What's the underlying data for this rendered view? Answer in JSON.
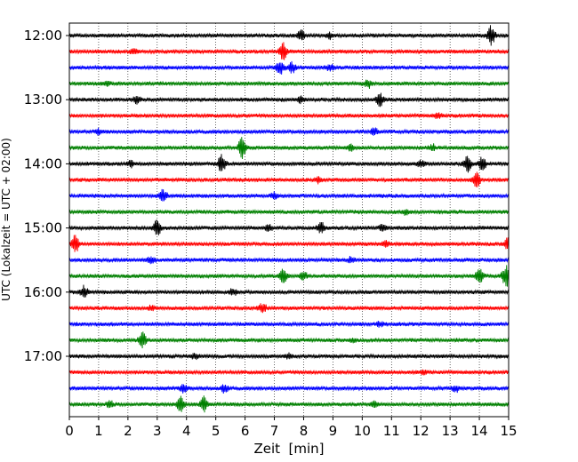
{
  "chart_data": {
    "type": "line",
    "title": "",
    "xlabel": "Zeit  [min]",
    "ylabel": "UTC (Lokalzeit = UTC + 02:00)",
    "xlim": [
      0,
      15
    ],
    "x_ticks": [
      "0",
      "1",
      "2",
      "3",
      "4",
      "5",
      "6",
      "7",
      "8",
      "9",
      "10",
      "11",
      "12",
      "13",
      "14",
      "15"
    ],
    "y_ticks": [
      "12:00",
      "13:00",
      "14:00",
      "15:00",
      "16:00",
      "17:00"
    ],
    "grid": "vertical dotted lines at each minute",
    "legend": "none",
    "trace_colors": [
      "#000000",
      "#ff0000",
      "#0000ff",
      "#008000"
    ],
    "traces": [
      {
        "start": "12:00",
        "color": "#000000",
        "events": [
          {
            "t": 7.9,
            "amp": 0.7
          },
          {
            "t": 14.4,
            "amp": 1.4
          },
          {
            "t": 8.9,
            "amp": 0.4
          }
        ]
      },
      {
        "start": "12:15",
        "color": "#ff0000",
        "events": [
          {
            "t": 7.3,
            "amp": 1.2
          },
          {
            "t": 2.2,
            "amp": 0.4
          }
        ]
      },
      {
        "start": "12:30",
        "color": "#0000ff",
        "events": [
          {
            "t": 7.2,
            "amp": 0.9
          },
          {
            "t": 7.6,
            "amp": 0.7
          },
          {
            "t": 8.9,
            "amp": 0.4
          }
        ]
      },
      {
        "start": "12:45",
        "color": "#008000",
        "events": [
          {
            "t": 10.2,
            "amp": 0.5
          },
          {
            "t": 1.3,
            "amp": 0.3
          }
        ]
      },
      {
        "start": "13:00",
        "color": "#000000",
        "events": [
          {
            "t": 10.6,
            "amp": 0.8
          },
          {
            "t": 2.3,
            "amp": 0.5
          },
          {
            "t": 7.9,
            "amp": 0.4
          }
        ]
      },
      {
        "start": "13:15",
        "color": "#ff0000",
        "events": [
          {
            "t": 12.6,
            "amp": 0.3
          }
        ]
      },
      {
        "start": "13:30",
        "color": "#0000ff",
        "events": [
          {
            "t": 10.4,
            "amp": 0.5
          },
          {
            "t": 1.0,
            "amp": 0.3
          }
        ]
      },
      {
        "start": "13:45",
        "color": "#008000",
        "events": [
          {
            "t": 5.9,
            "amp": 1.5
          },
          {
            "t": 9.6,
            "amp": 0.4
          },
          {
            "t": 12.4,
            "amp": 0.4
          }
        ]
      },
      {
        "start": "14:00",
        "color": "#000000",
        "events": [
          {
            "t": 5.2,
            "amp": 1.2
          },
          {
            "t": 13.6,
            "amp": 1.0
          },
          {
            "t": 14.1,
            "amp": 0.9
          },
          {
            "t": 12.0,
            "amp": 0.5
          },
          {
            "t": 2.1,
            "amp": 0.4
          }
        ]
      },
      {
        "start": "14:15",
        "color": "#ff0000",
        "events": [
          {
            "t": 13.9,
            "amp": 1.1
          },
          {
            "t": 8.5,
            "amp": 0.4
          }
        ]
      },
      {
        "start": "14:30",
        "color": "#0000ff",
        "events": [
          {
            "t": 3.2,
            "amp": 0.8
          },
          {
            "t": 7.0,
            "amp": 0.4
          }
        ]
      },
      {
        "start": "14:45",
        "color": "#008000",
        "events": [
          {
            "t": 11.5,
            "amp": 0.3
          }
        ]
      },
      {
        "start": "15:00",
        "color": "#000000",
        "events": [
          {
            "t": 3.0,
            "amp": 1.0
          },
          {
            "t": 8.6,
            "amp": 0.7
          },
          {
            "t": 10.7,
            "amp": 0.5
          },
          {
            "t": 6.8,
            "amp": 0.4
          }
        ]
      },
      {
        "start": "15:15",
        "color": "#ff0000",
        "events": [
          {
            "t": 0.2,
            "amp": 1.2
          },
          {
            "t": 15.0,
            "amp": 1.0
          },
          {
            "t": 10.8,
            "amp": 0.4
          }
        ]
      },
      {
        "start": "15:30",
        "color": "#0000ff",
        "events": [
          {
            "t": 2.8,
            "amp": 0.4
          },
          {
            "t": 9.6,
            "amp": 0.3
          }
        ]
      },
      {
        "start": "15:45",
        "color": "#008000",
        "events": [
          {
            "t": 7.3,
            "amp": 0.9
          },
          {
            "t": 14.0,
            "amp": 1.0
          },
          {
            "t": 14.9,
            "amp": 1.5
          },
          {
            "t": 8.0,
            "amp": 0.5
          }
        ]
      },
      {
        "start": "16:00",
        "color": "#000000",
        "events": [
          {
            "t": 0.5,
            "amp": 0.9
          },
          {
            "t": 5.6,
            "amp": 0.4
          }
        ]
      },
      {
        "start": "16:15",
        "color": "#ff0000",
        "events": [
          {
            "t": 6.6,
            "amp": 0.6
          },
          {
            "t": 2.8,
            "amp": 0.3
          }
        ]
      },
      {
        "start": "16:30",
        "color": "#0000ff",
        "events": [
          {
            "t": 10.6,
            "amp": 0.3
          }
        ]
      },
      {
        "start": "16:45",
        "color": "#008000",
        "events": [
          {
            "t": 2.5,
            "amp": 1.0
          },
          {
            "t": 9.7,
            "amp": 0.3
          }
        ]
      },
      {
        "start": "17:00",
        "color": "#000000",
        "events": [
          {
            "t": 4.3,
            "amp": 0.4
          },
          {
            "t": 7.5,
            "amp": 0.3
          }
        ]
      },
      {
        "start": "17:15",
        "color": "#ff0000",
        "events": [
          {
            "t": 12.1,
            "amp": 0.2
          }
        ]
      },
      {
        "start": "17:30",
        "color": "#0000ff",
        "events": [
          {
            "t": 3.9,
            "amp": 0.5
          },
          {
            "t": 5.3,
            "amp": 0.5
          },
          {
            "t": 13.2,
            "amp": 0.4
          }
        ]
      },
      {
        "start": "17:45",
        "color": "#008000",
        "events": [
          {
            "t": 3.8,
            "amp": 1.0
          },
          {
            "t": 4.6,
            "amp": 1.0
          },
          {
            "t": 1.4,
            "amp": 0.4
          },
          {
            "t": 10.4,
            "amp": 0.4
          }
        ]
      }
    ]
  }
}
